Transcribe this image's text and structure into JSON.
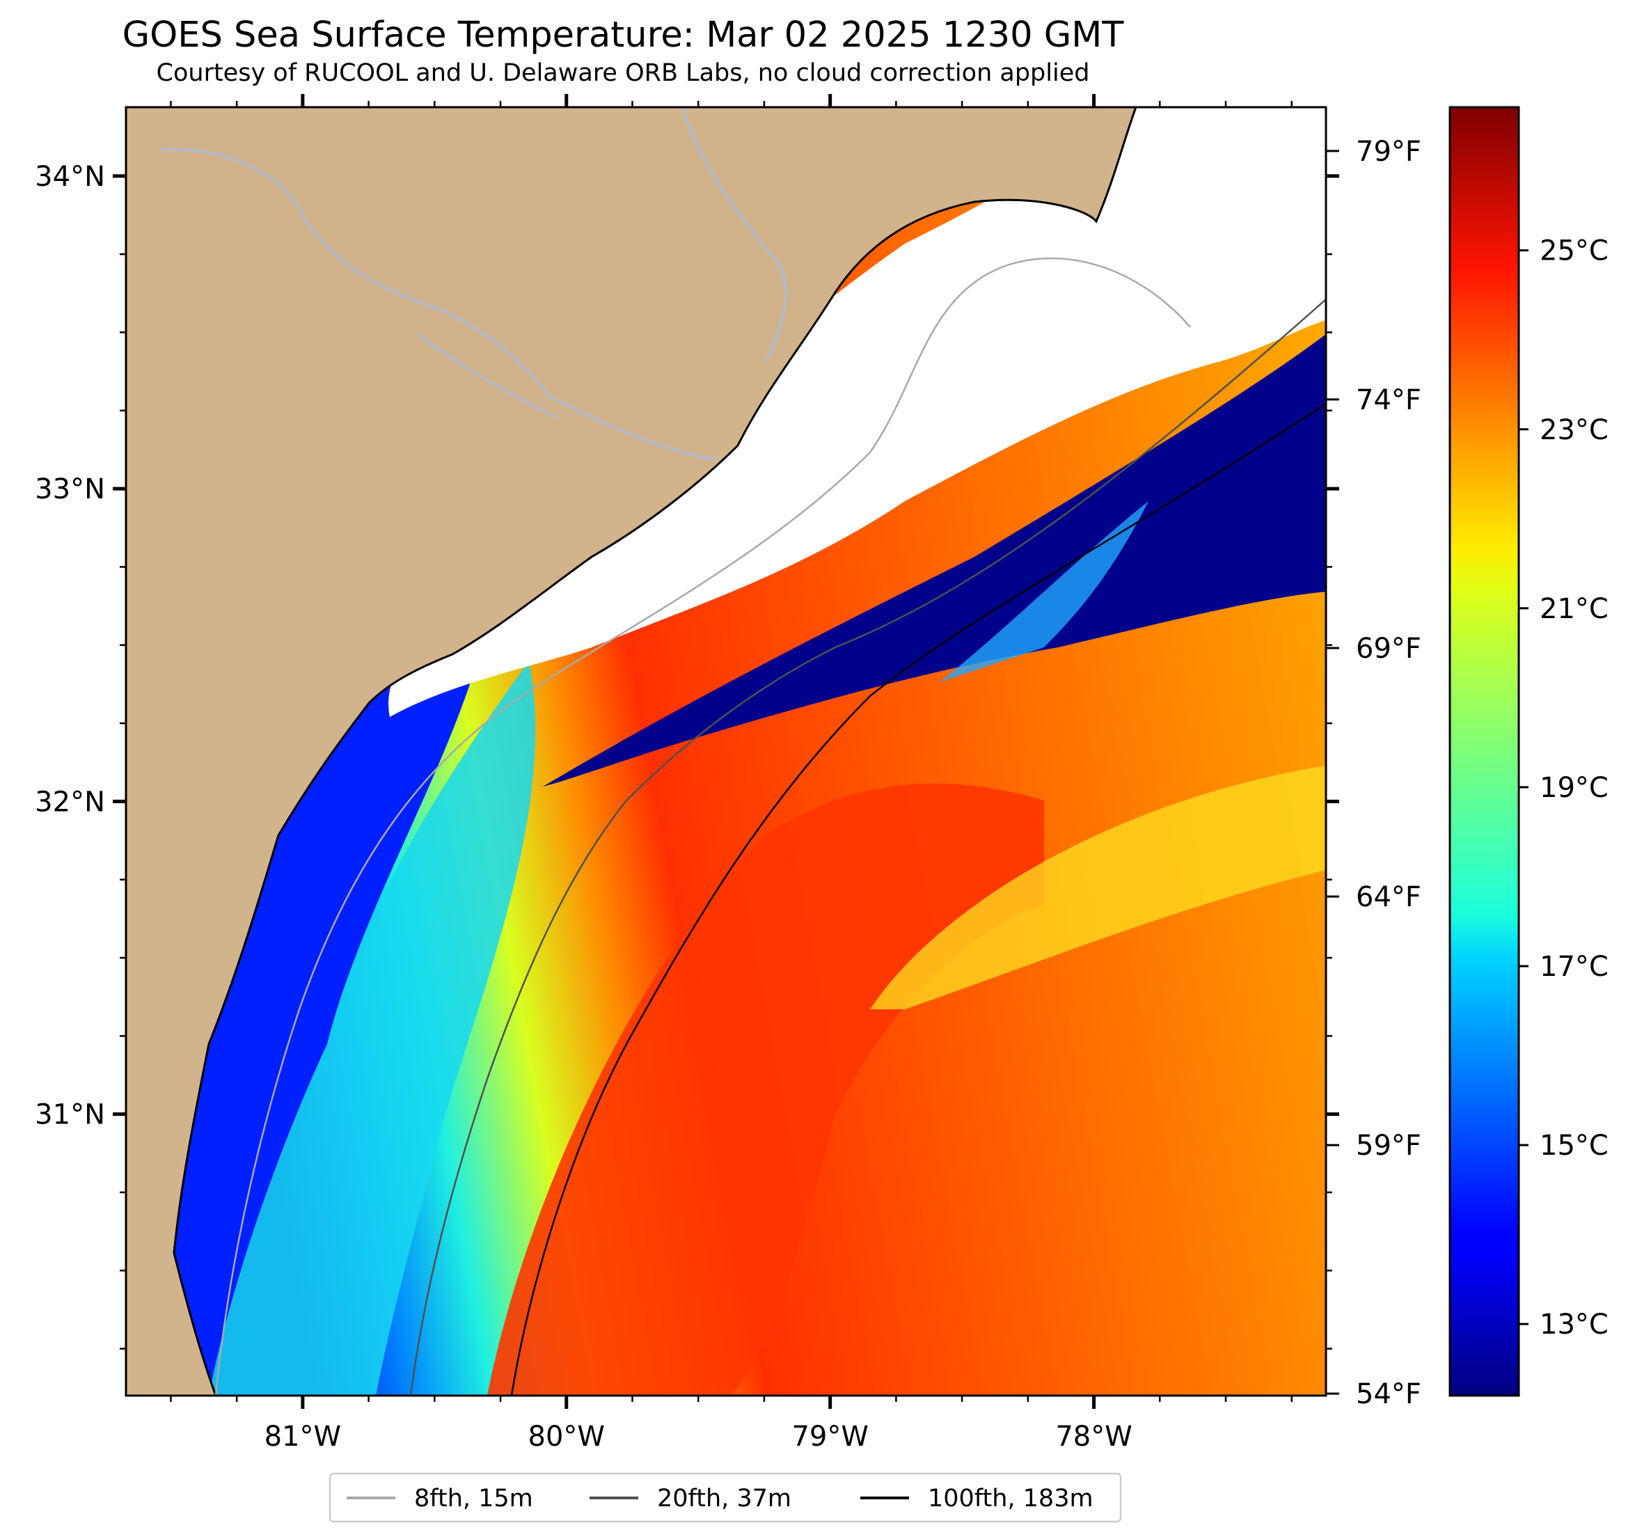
{
  "title": "GOES Sea Surface Temperature: Mar 02 2025 1230 GMT",
  "subtitle": "Courtesy of RUCOOL and U. Delaware ORB Labs, no cloud correction applied",
  "map": {
    "lon_range": [
      -81.67,
      -77.12
    ],
    "lat_range": [
      30.1,
      34.22
    ],
    "lat_ticks": [
      {
        "v": 34,
        "label": "34°N"
      },
      {
        "v": 33,
        "label": "33°N"
      },
      {
        "v": 32,
        "label": "32°N"
      },
      {
        "v": 31,
        "label": "31°N"
      }
    ],
    "lon_ticks": [
      {
        "v": -81,
        "label": "81°W"
      },
      {
        "v": -80,
        "label": "80°W"
      },
      {
        "v": -79,
        "label": "79°W"
      },
      {
        "v": -78,
        "label": "78°W"
      }
    ],
    "land_color": "#d2b48c",
    "cloud_color": "#ffffff",
    "river_color": "#a6bddb"
  },
  "colorbar": {
    "colormap": "jet",
    "range_c": [
      12.2,
      26.6
    ],
    "celsius_ticks": [
      {
        "v": 13,
        "label": "13°C"
      },
      {
        "v": 15,
        "label": "15°C"
      },
      {
        "v": 17,
        "label": "17°C"
      },
      {
        "v": 19,
        "label": "19°C"
      },
      {
        "v": 21,
        "label": "21°C"
      },
      {
        "v": 23,
        "label": "23°C"
      },
      {
        "v": 25,
        "label": "25°C"
      }
    ],
    "fahrenheit_ticks": [
      {
        "v": 54,
        "label": "54°F"
      },
      {
        "v": 59,
        "label": "59°F"
      },
      {
        "v": 64,
        "label": "64°F"
      },
      {
        "v": 69,
        "label": "69°F"
      },
      {
        "v": 74,
        "label": "74°F"
      },
      {
        "v": 79,
        "label": "79°F"
      }
    ]
  },
  "legend": {
    "placement": "bottom-center",
    "items": [
      {
        "label": "8fth, 15m",
        "color": "#a9a9a9"
      },
      {
        "label": "20fth, 37m",
        "color": "#505050"
      },
      {
        "label": "100fth, 183m",
        "color": "#000000"
      }
    ]
  }
}
